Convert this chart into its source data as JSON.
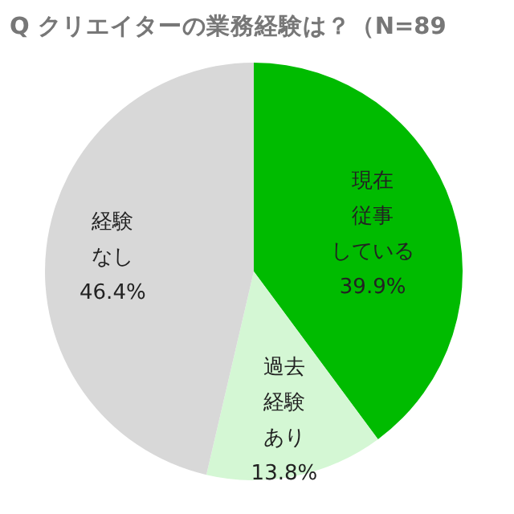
{
  "chart_data": {
    "type": "pie",
    "title": "Q クリエイターの業務経験は？（N=89",
    "categories": [
      "現在従事している",
      "過去経験あり",
      "経験なし"
    ],
    "values": [
      39.9,
      13.8,
      46.4
    ],
    "value_labels": [
      "39.9%",
      "13.8%",
      "46.4%"
    ],
    "colors": [
      "#00bb00",
      "#d4f7d4",
      "#d8d8d8"
    ]
  }
}
